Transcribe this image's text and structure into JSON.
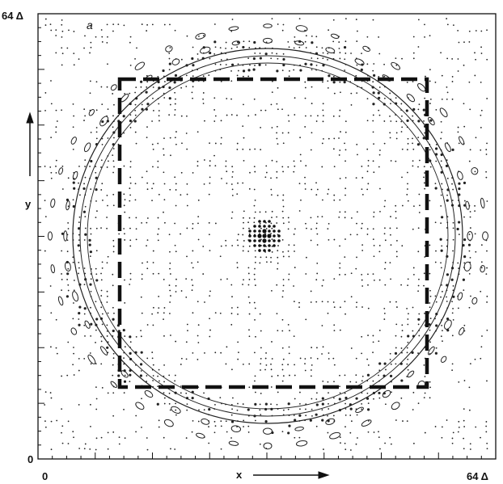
{
  "figure": {
    "panel_label": "a",
    "y_axis_label": "y",
    "x_axis_label": "x",
    "y_max_label": "64 Δ",
    "x_max_label": "64 Δ",
    "origin_y_label": "0",
    "origin_x_label": "0"
  },
  "colors": {
    "ink": "#1a1a1a",
    "background": "#ffffff"
  }
}
